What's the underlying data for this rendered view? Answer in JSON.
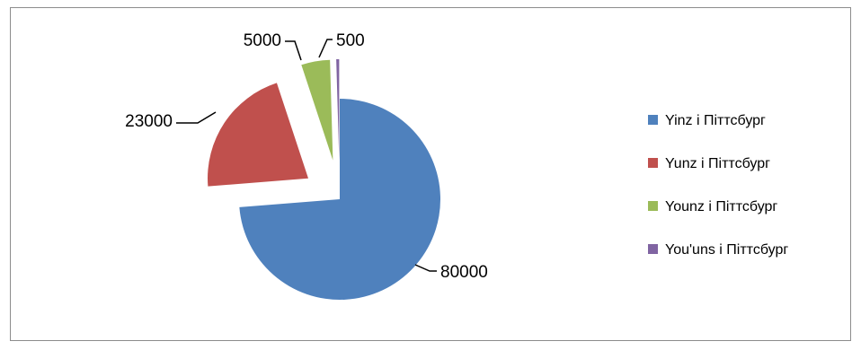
{
  "chart_data": {
    "type": "pie",
    "exploded": true,
    "legend_position": "right",
    "show_data_labels": true,
    "slices": [
      {
        "label": "Yinz і Піттсбург",
        "value": 80000,
        "color": "#4f81bd"
      },
      {
        "label": "Yunz і Піттсбург",
        "value": 23000,
        "color": "#c0504d"
      },
      {
        "label": "Younz і Піттсбург",
        "value": 5000,
        "color": "#9bbb59"
      },
      {
        "label": "You'uns і Піттсбург",
        "value": 500,
        "color": "#8064a2"
      }
    ],
    "data_labels": [
      "80000",
      "23000",
      "5000",
      "500"
    ]
  }
}
